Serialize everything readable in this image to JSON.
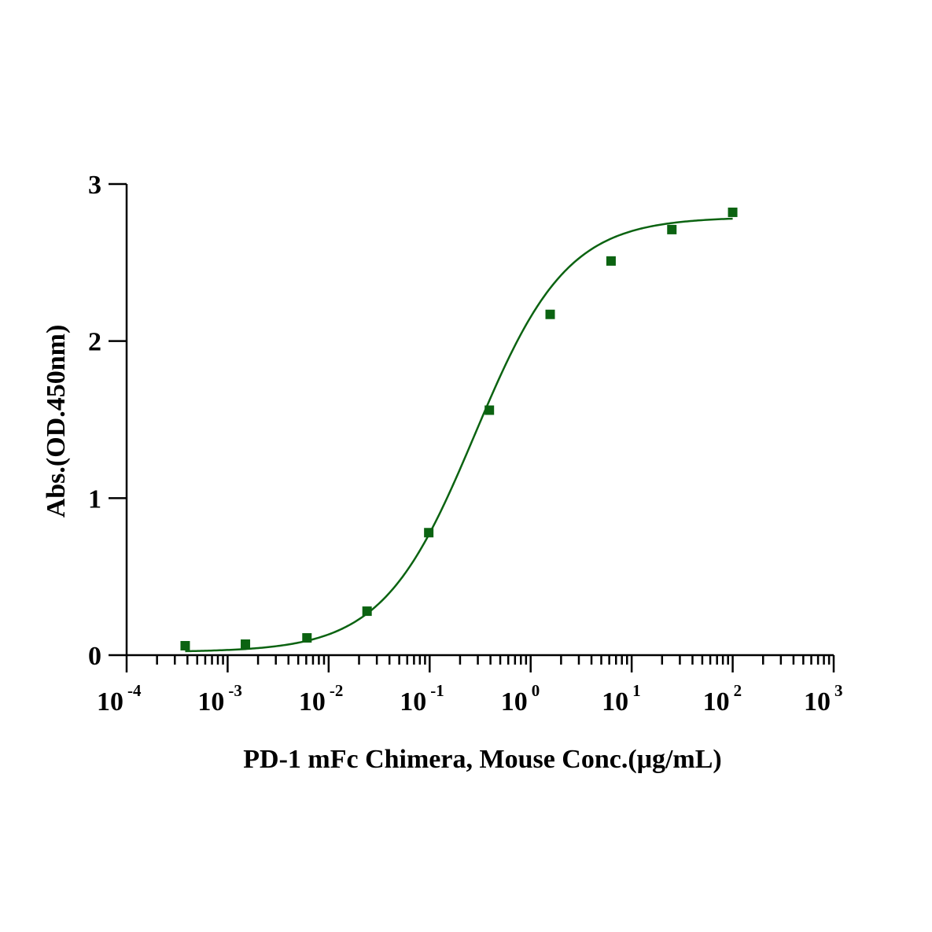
{
  "chart_data": {
    "type": "scatter",
    "xlabel": "PD-1 mFc Chimera, Mouse Conc.(μg/mL)",
    "ylabel": "Abs.(OD.450nm)",
    "xscale": "log10",
    "xlim": [
      0.0001,
      1000
    ],
    "ylim": [
      0,
      3
    ],
    "x_tick_labels": [
      {
        "base": "10",
        "exp": "-4"
      },
      {
        "base": "10",
        "exp": "-3"
      },
      {
        "base": "10",
        "exp": "-2"
      },
      {
        "base": "10",
        "exp": "-1"
      },
      {
        "base": "10",
        "exp": "0"
      },
      {
        "base": "10",
        "exp": "1"
      },
      {
        "base": "10",
        "exp": "2"
      },
      {
        "base": "10",
        "exp": "3"
      }
    ],
    "y_tick_labels": [
      "0",
      "1",
      "2",
      "3"
    ],
    "grid": false,
    "series": [
      {
        "color": "#0b6311",
        "marker": "square",
        "fit": "4PL",
        "x": [
          0.00038,
          0.0015,
          0.0061,
          0.024,
          0.098,
          0.39,
          1.56,
          6.25,
          25,
          100
        ],
        "y": [
          0.06,
          0.07,
          0.11,
          0.28,
          0.78,
          1.56,
          2.17,
          2.51,
          2.71,
          2.82
        ],
        "fit_params": {
          "bottom": 0.02,
          "top": 2.79,
          "ec50": 0.28,
          "hill": 0.95
        }
      }
    ]
  }
}
